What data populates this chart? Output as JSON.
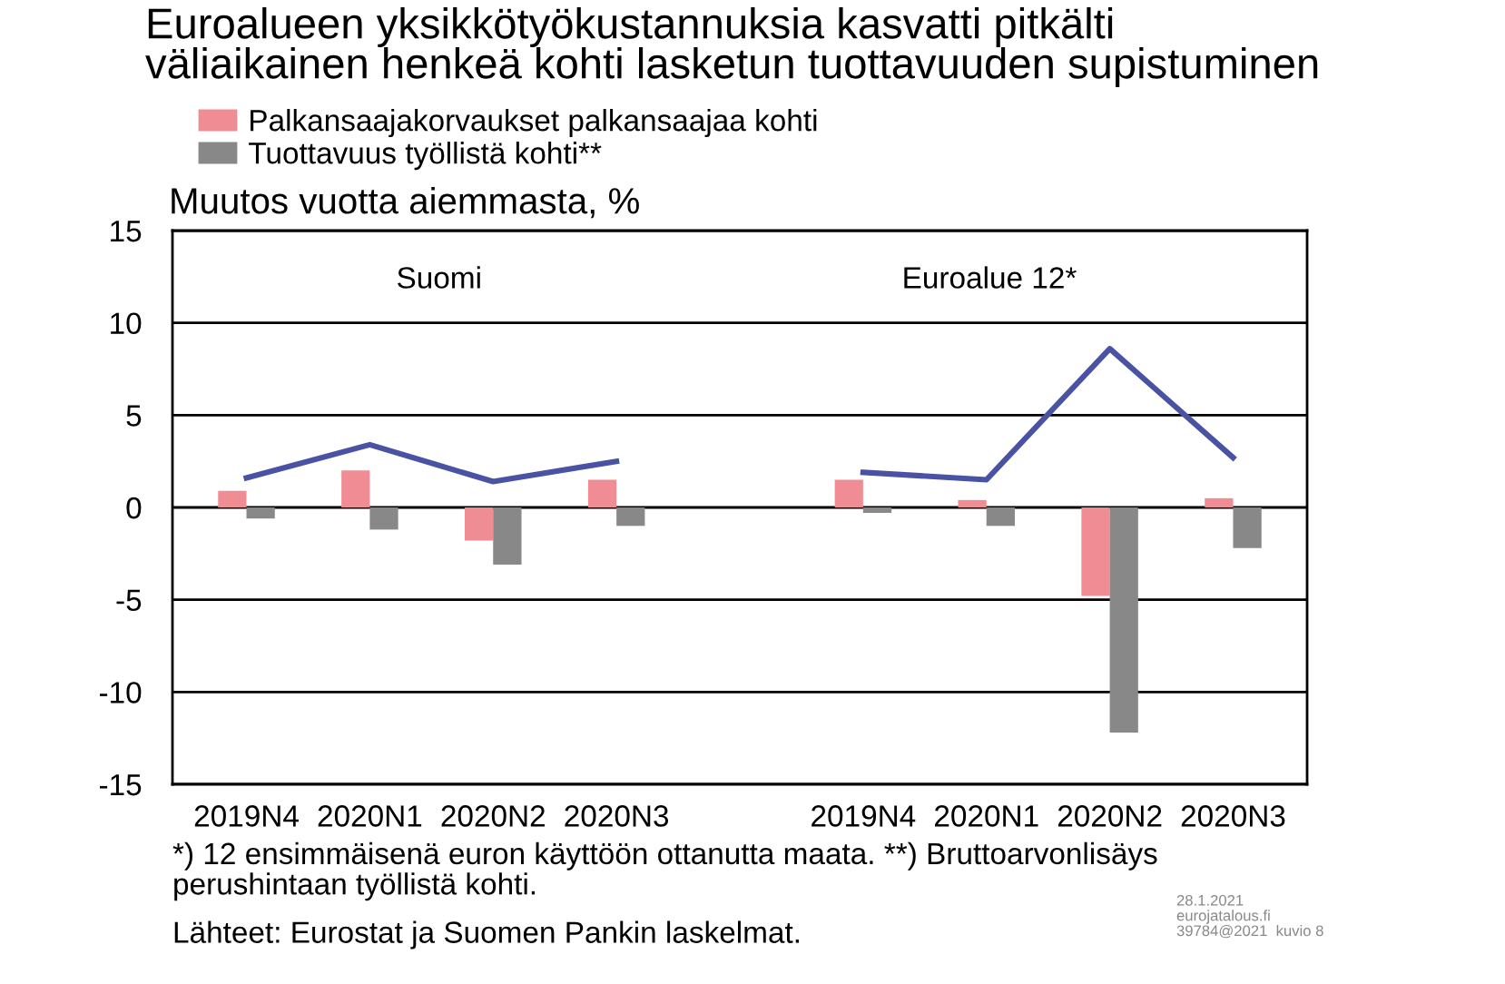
{
  "chart_data": {
    "type": "bar",
    "title": "Euroalueen yksikkötyökustannuksia kasvatti pitkälti\nväliaikainen henkeä kohti lasketun tuottavuuden supistuminen",
    "ylabel": "Muutos vuotta aiemmasta, %",
    "categories": [
      "2019N4",
      "2020N1",
      "2020N2",
      "2020N3",
      null,
      "2019N4",
      "2020N1",
      "2020N2",
      "2020N3"
    ],
    "series": [
      {
        "name": "Palkansaajakorvaukset palkansaajaa kohti",
        "color": "#f08c94",
        "values": [
          0.9,
          2.0,
          -1.8,
          1.5,
          null,
          1.5,
          0.4,
          -4.8,
          0.5
        ]
      },
      {
        "name": "Tuottavuus työllistä kohti**",
        "color": "#888888",
        "values": [
          -0.6,
          -1.2,
          -3.1,
          -1.0,
          null,
          -0.3,
          -1.0,
          -12.2,
          -2.2
        ]
      },
      {
        "type": "line",
        "color": "#4a52a4",
        "values": [
          1.6,
          3.4,
          1.4,
          2.5,
          null,
          1.9,
          1.5,
          8.6,
          2.7
        ]
      }
    ],
    "ylim": [
      -15,
      15
    ],
    "yticks": [
      -15,
      -10,
      -5,
      0,
      5,
      10,
      15
    ],
    "grid": "y",
    "legend": "top left",
    "annotations": [
      "Suomi",
      "Euroalue 12*",
      "*) 12 ensimmäisenä euron käyttöön ottanutta maata. **) Bruttoarvonlisäys\nperushintaan työllistä kohti.",
      "Lähteet: Eurostat ja Suomen Pankin laskelmat.",
      "28.1.2021\neurojatalous.fi\n39784@2021  kuvio 8"
    ]
  }
}
